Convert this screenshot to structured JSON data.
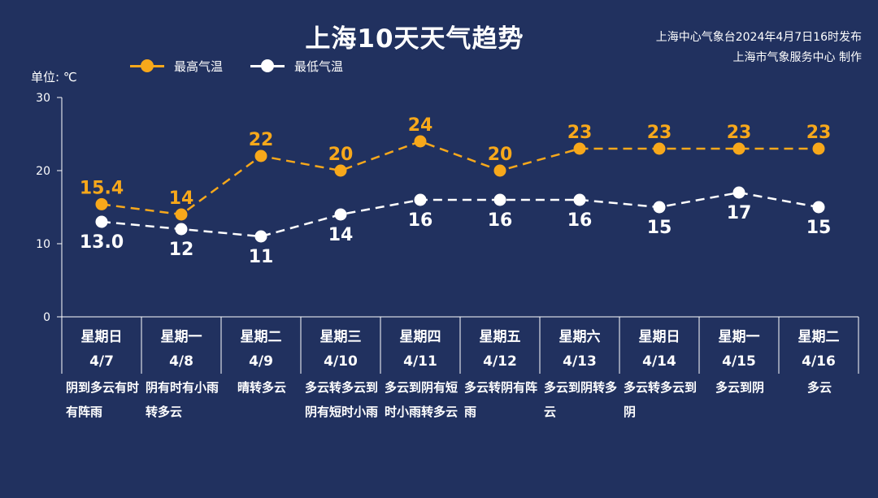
{
  "title": "上海10天天气趋势",
  "issuer": {
    "line1": "上海中心气象台2024年4月7日16时发布",
    "line2": "上海市气象服务中心 制作"
  },
  "colors": {
    "background": "#21315f",
    "high": "#f7a81b",
    "low": "#ffffff",
    "axis": "#ffffff"
  },
  "chart_data": {
    "type": "line",
    "ylabel": "单位: ℃",
    "ylim": [
      0,
      30
    ],
    "yticks": [
      "0",
      "10",
      "20",
      "30"
    ],
    "legend": {
      "placement": "top-left",
      "entries": [
        "最高气温",
        "最低气温"
      ]
    },
    "grid": false,
    "days": [
      {
        "weekday": "星期日",
        "date": "4/7",
        "weather": "阴到多云有时有阵雨"
      },
      {
        "weekday": "星期一",
        "date": "4/8",
        "weather": "阴有时有小雨转多云"
      },
      {
        "weekday": "星期二",
        "date": "4/9",
        "weather": "晴转多云"
      },
      {
        "weekday": "星期三",
        "date": "4/10",
        "weather": "多云转多云到阴有短时小雨"
      },
      {
        "weekday": "星期四",
        "date": "4/11",
        "weather": "多云到阴有短时小雨转多云"
      },
      {
        "weekday": "星期五",
        "date": "4/12",
        "weather": "多云转阴有阵雨"
      },
      {
        "weekday": "星期六",
        "date": "4/13",
        "weather": "多云到阴转多云"
      },
      {
        "weekday": "星期日",
        "date": "4/14",
        "weather": "多云转多云到阴"
      },
      {
        "weekday": "星期一",
        "date": "4/15",
        "weather": "多云到阴"
      },
      {
        "weekday": "星期二",
        "date": "4/16",
        "weather": "多云"
      }
    ],
    "series": [
      {
        "name": "最高气温",
        "values": [
          15.4,
          14,
          22,
          20,
          24,
          20,
          23,
          23,
          23,
          23
        ],
        "labels": [
          "15.4",
          "14",
          "22",
          "20",
          "24",
          "20",
          "23",
          "23",
          "23",
          "23"
        ]
      },
      {
        "name": "最低气温",
        "values": [
          13.0,
          12,
          11,
          14,
          16,
          16,
          16,
          15,
          17,
          15
        ],
        "labels": [
          "13.0",
          "12",
          "11",
          "14",
          "16",
          "16",
          "16",
          "15",
          "17",
          "15"
        ]
      }
    ]
  }
}
